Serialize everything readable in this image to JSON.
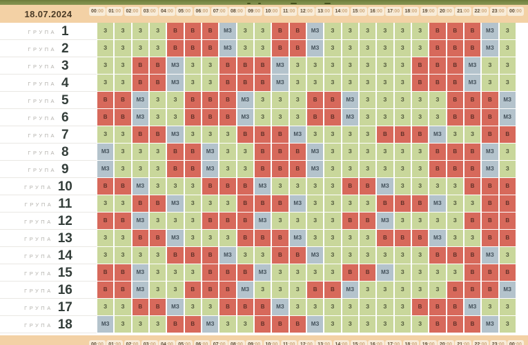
{
  "legend": {
    "on": "З",
    "off": "В",
    "maybe": "МЗ"
  },
  "header": {
    "date": "18.07.2024",
    "hours": [
      "00:00",
      "01:00",
      "02:00",
      "03:00",
      "04:00",
      "05:00",
      "06:00",
      "07:00",
      "08:00",
      "09:00",
      "10:00",
      "11:00",
      "12:00",
      "13:00",
      "14:00",
      "15:00",
      "16:00",
      "17:00",
      "18:00",
      "19:00",
      "20:00",
      "21:00",
      "22:00",
      "23:00",
      "00:00"
    ]
  },
  "footer": {
    "hours": [
      "00:00",
      "01:00",
      "02:00",
      "03:00",
      "04:00",
      "05:00",
      "06:00",
      "07:00",
      "08:00",
      "09:00",
      "10:00",
      "11:00",
      "12:00",
      "13:00",
      "14:00",
      "15:00",
      "16:00",
      "17:00",
      "18:00",
      "19:00",
      "20:00",
      "21:00",
      "22:00",
      "23:00",
      "00:00"
    ]
  },
  "group_label": "ГРУПА",
  "rows": [
    {
      "group_number": "1",
      "cells": [
        "З",
        "З",
        "З",
        "З",
        "В",
        "В",
        "В",
        "МЗ",
        "З",
        "З",
        "В",
        "В",
        "МЗ",
        "З",
        "З",
        "З",
        "З",
        "З",
        "З",
        "В",
        "В",
        "В",
        "МЗ",
        "З"
      ]
    },
    {
      "group_number": "2",
      "cells": [
        "З",
        "З",
        "З",
        "З",
        "В",
        "В",
        "В",
        "МЗ",
        "З",
        "З",
        "В",
        "В",
        "МЗ",
        "З",
        "З",
        "З",
        "З",
        "З",
        "З",
        "В",
        "В",
        "В",
        "МЗ",
        "З"
      ]
    },
    {
      "group_number": "3",
      "cells": [
        "З",
        "З",
        "В",
        "В",
        "МЗ",
        "З",
        "З",
        "В",
        "В",
        "В",
        "МЗ",
        "З",
        "З",
        "З",
        "З",
        "З",
        "З",
        "З",
        "В",
        "В",
        "В",
        "МЗ",
        "З",
        "З"
      ]
    },
    {
      "group_number": "4",
      "cells": [
        "З",
        "З",
        "В",
        "В",
        "МЗ",
        "З",
        "З",
        "В",
        "В",
        "В",
        "МЗ",
        "З",
        "З",
        "З",
        "З",
        "З",
        "З",
        "З",
        "В",
        "В",
        "В",
        "МЗ",
        "З",
        "З"
      ]
    },
    {
      "group_number": "5",
      "cells": [
        "В",
        "В",
        "МЗ",
        "З",
        "З",
        "В",
        "В",
        "В",
        "МЗ",
        "З",
        "З",
        "З",
        "В",
        "В",
        "МЗ",
        "З",
        "З",
        "З",
        "З",
        "З",
        "В",
        "В",
        "В",
        "МЗ"
      ]
    },
    {
      "group_number": "6",
      "cells": [
        "В",
        "В",
        "МЗ",
        "З",
        "З",
        "В",
        "В",
        "В",
        "МЗ",
        "З",
        "З",
        "З",
        "В",
        "В",
        "МЗ",
        "З",
        "З",
        "З",
        "З",
        "З",
        "В",
        "В",
        "В",
        "МЗ"
      ]
    },
    {
      "group_number": "7",
      "cells": [
        "З",
        "З",
        "В",
        "В",
        "МЗ",
        "З",
        "З",
        "З",
        "В",
        "В",
        "В",
        "МЗ",
        "З",
        "З",
        "З",
        "З",
        "В",
        "В",
        "В",
        "МЗ",
        "З",
        "З",
        "В",
        "В"
      ]
    },
    {
      "group_number": "8",
      "cells": [
        "МЗ",
        "З",
        "З",
        "З",
        "В",
        "В",
        "МЗ",
        "З",
        "З",
        "В",
        "В",
        "В",
        "МЗ",
        "З",
        "З",
        "З",
        "З",
        "З",
        "З",
        "В",
        "В",
        "В",
        "МЗ",
        "З"
      ]
    },
    {
      "group_number": "9",
      "cells": [
        "МЗ",
        "З",
        "З",
        "З",
        "В",
        "В",
        "МЗ",
        "З",
        "З",
        "В",
        "В",
        "В",
        "МЗ",
        "З",
        "З",
        "З",
        "З",
        "З",
        "З",
        "В",
        "В",
        "В",
        "МЗ",
        "З"
      ]
    },
    {
      "group_number": "10",
      "cells": [
        "В",
        "В",
        "МЗ",
        "З",
        "З",
        "З",
        "В",
        "В",
        "В",
        "МЗ",
        "З",
        "З",
        "З",
        "З",
        "В",
        "В",
        "МЗ",
        "З",
        "З",
        "З",
        "З",
        "В",
        "В",
        "В"
      ]
    },
    {
      "group_number": "11",
      "cells": [
        "З",
        "З",
        "В",
        "В",
        "МЗ",
        "З",
        "З",
        "З",
        "В",
        "В",
        "В",
        "МЗ",
        "З",
        "З",
        "З",
        "З",
        "В",
        "В",
        "В",
        "МЗ",
        "З",
        "З",
        "В",
        "В"
      ]
    },
    {
      "group_number": "12",
      "cells": [
        "В",
        "В",
        "МЗ",
        "З",
        "З",
        "З",
        "В",
        "В",
        "В",
        "МЗ",
        "З",
        "З",
        "З",
        "З",
        "В",
        "В",
        "МЗ",
        "З",
        "З",
        "З",
        "З",
        "В",
        "В",
        "В"
      ]
    },
    {
      "group_number": "13",
      "cells": [
        "З",
        "З",
        "В",
        "В",
        "МЗ",
        "З",
        "З",
        "З",
        "В",
        "В",
        "В",
        "МЗ",
        "З",
        "З",
        "З",
        "З",
        "В",
        "В",
        "В",
        "МЗ",
        "З",
        "З",
        "В",
        "В"
      ]
    },
    {
      "group_number": "14",
      "cells": [
        "З",
        "З",
        "З",
        "З",
        "В",
        "В",
        "В",
        "МЗ",
        "З",
        "З",
        "В",
        "В",
        "МЗ",
        "З",
        "З",
        "З",
        "З",
        "З",
        "З",
        "В",
        "В",
        "В",
        "МЗ",
        "З"
      ]
    },
    {
      "group_number": "15",
      "cells": [
        "В",
        "В",
        "МЗ",
        "З",
        "З",
        "З",
        "В",
        "В",
        "В",
        "МЗ",
        "З",
        "З",
        "З",
        "З",
        "В",
        "В",
        "МЗ",
        "З",
        "З",
        "З",
        "З",
        "В",
        "В",
        "В"
      ]
    },
    {
      "group_number": "16",
      "cells": [
        "В",
        "В",
        "МЗ",
        "З",
        "З",
        "В",
        "В",
        "В",
        "МЗ",
        "З",
        "З",
        "З",
        "В",
        "В",
        "МЗ",
        "З",
        "З",
        "З",
        "З",
        "З",
        "В",
        "В",
        "В",
        "МЗ"
      ]
    },
    {
      "group_number": "17",
      "cells": [
        "З",
        "З",
        "В",
        "В",
        "МЗ",
        "З",
        "З",
        "В",
        "В",
        "В",
        "МЗ",
        "З",
        "З",
        "З",
        "З",
        "З",
        "З",
        "З",
        "В",
        "В",
        "В",
        "МЗ",
        "З",
        "З"
      ]
    },
    {
      "group_number": "18",
      "cells": [
        "МЗ",
        "З",
        "З",
        "З",
        "В",
        "В",
        "МЗ",
        "З",
        "З",
        "В",
        "В",
        "В",
        "МЗ",
        "З",
        "З",
        "З",
        "З",
        "З",
        "З",
        "В",
        "В",
        "В",
        "МЗ",
        "З"
      ]
    }
  ],
  "colors": {
    "top_bar": "#76843f",
    "band": "#f3d1a5",
    "chip_bg": "#f8ecd9",
    "chip_hour_text": "#5c4a33",
    "chip_minute_text": "#cda87c",
    "date_text": "#4a3a26",
    "group_word_text": "#b3b1ac",
    "group_number_text": "#333d39",
    "row_divider": "#e9e7e3",
    "on_bg": "#c9d79b",
    "on_text": "#4e5639",
    "off_bg": "#d7695b",
    "off_text": "#602f27",
    "maybe_bg": "#b4c3cc",
    "maybe_text": "#42505a"
  }
}
